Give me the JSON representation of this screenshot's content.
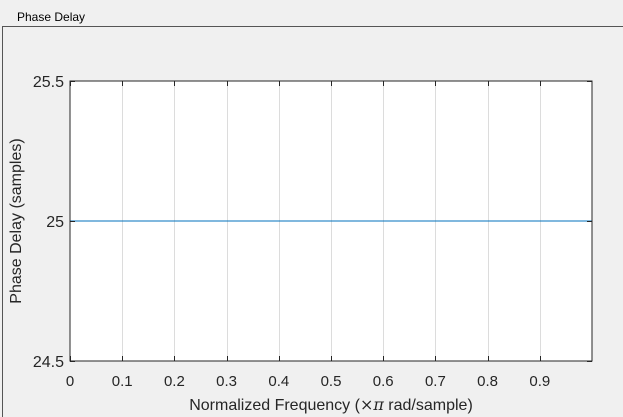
{
  "panel": {
    "title": "Phase Delay"
  },
  "chart_data": {
    "type": "line",
    "title": "",
    "xlabel_pre": "Normalized Frequency (",
    "xlabel_sym": "×π",
    "xlabel_post": " rad/sample)",
    "ylabel": "Phase Delay (samples)",
    "xlim": [
      0,
      1
    ],
    "ylim": [
      24.5,
      25.5
    ],
    "xticks": [
      0,
      0.1,
      0.2,
      0.3,
      0.4,
      0.5,
      0.6,
      0.7,
      0.8,
      0.9
    ],
    "xtick_labels": [
      "0",
      "0.1",
      "0.2",
      "0.3",
      "0.4",
      "0.5",
      "0.6",
      "0.7",
      "0.8",
      "0.9"
    ],
    "yticks": [
      24.5,
      25,
      25.5
    ],
    "ytick_labels": [
      "24.5",
      "25",
      "25.5"
    ],
    "grid": "x",
    "series": [
      {
        "x": [
          0,
          1
        ],
        "y": [
          25,
          25
        ],
        "color": "#0072bd"
      }
    ]
  }
}
